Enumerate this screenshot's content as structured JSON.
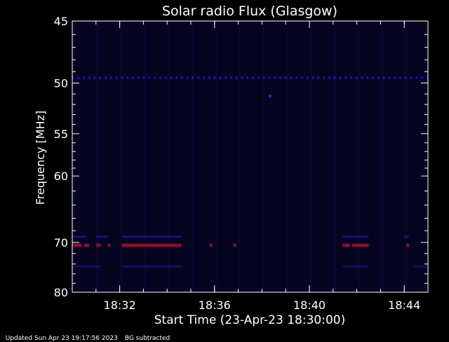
{
  "chart_data": {
    "type": "heatmap",
    "title": "Solar radio Flux (Glasgow)",
    "xlabel": "Start Time (23-Apr-23 18:30:00)",
    "ylabel": "Frequency [MHz]",
    "x_range_minutes": [
      0,
      15
    ],
    "x_ticks": [
      {
        "label": "18:32",
        "minute": 2
      },
      {
        "label": "18:36",
        "minute": 6
      },
      {
        "label": "18:40",
        "minute": 10
      },
      {
        "label": "18:44",
        "minute": 14
      }
    ],
    "y_range_mhz": [
      45,
      80
    ],
    "y_scale": "reciprocal",
    "y_ticks": [
      45,
      50,
      55,
      60,
      70,
      80
    ],
    "background_color": "#050520",
    "features": [
      {
        "name": "continuous band ~49.5 MHz",
        "freq_mhz": 49.5,
        "start_min": 0,
        "end_min": 15,
        "intensity": "medium",
        "color": "#1a1ad8"
      },
      {
        "name": "point ~51 MHz",
        "freq_mhz": 51.2,
        "start_min": 8.3,
        "end_min": 8.4,
        "intensity": "medium",
        "color": "#2a2aff"
      },
      {
        "name": "bright band ~70.5 MHz",
        "freq_mhz": 70.5,
        "segments": [
          [
            0,
            0.4
          ],
          [
            0.5,
            0.7
          ],
          [
            1.0,
            1.2
          ],
          [
            1.5,
            1.6
          ],
          [
            2.1,
            4.6
          ],
          [
            5.8,
            5.9
          ],
          [
            6.8,
            6.9
          ],
          [
            11.4,
            11.7
          ],
          [
            11.8,
            12.5
          ],
          [
            14.1,
            14.2
          ]
        ],
        "intensity": "high",
        "color": "#ff2020"
      },
      {
        "name": "faint band ~69 MHz",
        "freq_mhz": 69,
        "segments": [
          [
            0,
            0.6
          ],
          [
            1.0,
            1.5
          ],
          [
            2.1,
            4.6
          ],
          [
            11.4,
            12.5
          ],
          [
            14.0,
            14.2
          ]
        ],
        "intensity": "low",
        "color": "#12127a"
      },
      {
        "name": "faint band ~74 MHz",
        "freq_mhz": 74.5,
        "segments": [
          [
            0,
            1.2
          ],
          [
            2.1,
            4.6
          ],
          [
            11.4,
            12.5
          ],
          [
            14.4,
            15
          ]
        ],
        "intensity": "low",
        "color": "#0f0f66"
      }
    ],
    "annotation": "BG subtracted"
  },
  "footer": {
    "updated": "Updated Sun Apr 23 19:17:56 2023",
    "bg": "BG subtracted"
  },
  "colors": {
    "axis": "#ffffff",
    "plot_bg": "#050520"
  }
}
